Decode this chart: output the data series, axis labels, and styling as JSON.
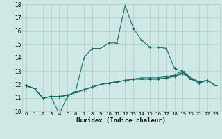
{
  "xlabel": "Humidex (Indice chaleur)",
  "background_color": "#cfe8e5",
  "grid_color": "#aacfcc",
  "line_color": "#1a6e68",
  "x": [
    0,
    1,
    2,
    3,
    4,
    5,
    6,
    7,
    8,
    9,
    10,
    11,
    12,
    13,
    14,
    15,
    16,
    17,
    18,
    19,
    20,
    21,
    22,
    23
  ],
  "series": [
    [
      11.9,
      11.7,
      11.0,
      11.1,
      9.8,
      11.1,
      11.5,
      14.0,
      14.7,
      14.7,
      15.1,
      15.1,
      17.9,
      16.2,
      15.3,
      14.8,
      14.8,
      14.7,
      13.2,
      13.0,
      12.4,
      12.1,
      12.3,
      11.9
    ],
    [
      11.9,
      11.7,
      11.0,
      11.1,
      11.1,
      11.2,
      11.4,
      11.6,
      11.8,
      12.0,
      12.1,
      12.2,
      12.3,
      12.4,
      12.4,
      12.4,
      12.4,
      12.5,
      12.6,
      12.8,
      12.4,
      12.2,
      12.3,
      11.9
    ],
    [
      11.9,
      11.7,
      11.0,
      11.1,
      11.1,
      11.2,
      11.4,
      11.6,
      11.8,
      12.0,
      12.1,
      12.2,
      12.3,
      12.4,
      12.4,
      12.4,
      12.4,
      12.5,
      12.6,
      12.9,
      12.4,
      12.2,
      12.3,
      11.9
    ],
    [
      11.9,
      11.7,
      11.0,
      11.1,
      11.1,
      11.2,
      11.4,
      11.6,
      11.8,
      12.0,
      12.1,
      12.2,
      12.3,
      12.4,
      12.5,
      12.5,
      12.5,
      12.6,
      12.7,
      13.0,
      12.5,
      12.2,
      12.3,
      11.9
    ]
  ],
  "ylim": [
    10,
    18
  ],
  "xlim": [
    -0.5,
    23.5
  ],
  "yticks": [
    10,
    11,
    12,
    13,
    14,
    15,
    16,
    17,
    18
  ],
  "xtick_labels": [
    "0",
    "1",
    "2",
    "3",
    "4",
    "5",
    "6",
    "7",
    "8",
    "9",
    "10",
    "11",
    "12",
    "13",
    "14",
    "15",
    "16",
    "17",
    "18",
    "19",
    "20",
    "21",
    "22",
    "23"
  ],
  "marker": "+",
  "markersize": 3,
  "linewidth": 0.8,
  "xlabel_fontsize": 6.5,
  "ytick_fontsize": 5.5,
  "xtick_fontsize": 5.0
}
